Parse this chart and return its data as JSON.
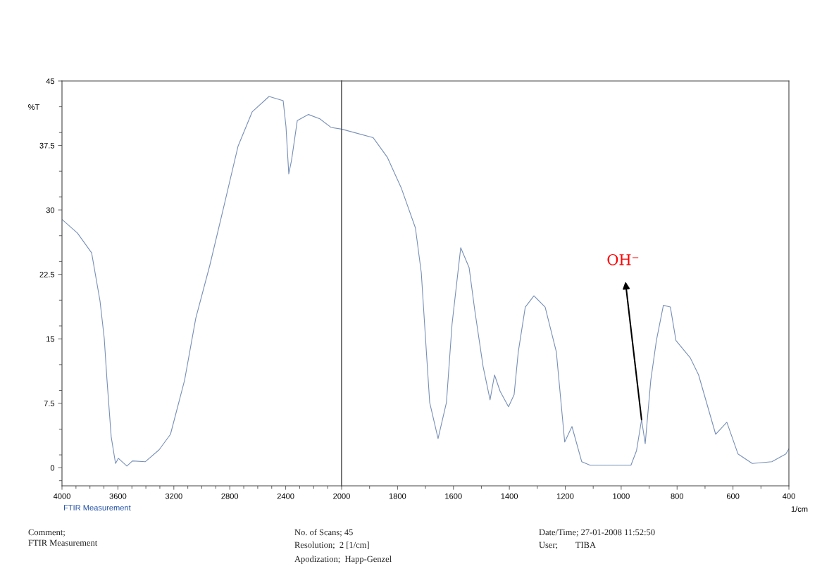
{
  "chart_data": [
    {
      "type": "line",
      "ylabel": "%T",
      "xlim": [
        4000,
        2000
      ],
      "ylim": [
        -2.1,
        45
      ],
      "xticks": [
        4000,
        {
          "value": 3900,
          "label": null
        },
        {
          "value": 3800,
          "label": null
        },
        {
          "value": 3700,
          "label": null
        },
        3600,
        {
          "value": 3500,
          "label": null
        },
        {
          "value": 3400,
          "label": null
        },
        {
          "value": 3300,
          "label": null
        },
        3200,
        {
          "value": 3100,
          "label": null
        },
        {
          "value": 3000,
          "label": null
        },
        {
          "value": 2900,
          "label": null
        },
        2800,
        {
          "value": 2700,
          "label": null
        },
        {
          "value": 2600,
          "label": null
        },
        {
          "value": 2500,
          "label": null
        },
        2400,
        {
          "value": 2300,
          "label": null
        },
        {
          "value": 2200,
          "label": null
        },
        {
          "value": 2100,
          "label": null
        }
      ],
      "yticks": [
        {
          "value": -1.5,
          "label": null
        },
        0,
        {
          "value": 1.5,
          "label": null
        },
        {
          "value": 4.5,
          "label": null
        },
        7.5,
        {
          "value": 9,
          "label": null
        },
        {
          "value": 12,
          "label": null
        },
        15,
        {
          "value": 16.5,
          "label": null
        },
        {
          "value": 19.5,
          "label": null
        },
        22.5,
        {
          "value": 24,
          "label": null
        },
        {
          "value": 27,
          "label": null
        },
        30,
        {
          "value": 31.5,
          "label": null
        },
        {
          "value": 34.5,
          "label": null
        },
        37.5,
        {
          "value": 39,
          "label": null
        },
        {
          "value": 42,
          "label": null
        },
        45
      ],
      "grid": false,
      "marker": "none",
      "line_style": "solid",
      "series": [
        {
          "color": "#7890b8",
          "x": [
            4000,
            3889,
            3788,
            3728,
            3698,
            3678,
            3648,
            3617,
            3597,
            3536,
            3496,
            3405,
            3305,
            3224,
            3123,
            3043,
            2942,
            2841,
            2741,
            2640,
            2519,
            2418,
            2398,
            2378,
            2358,
            2317,
            2237,
            2156,
            2076,
            2000
          ],
          "values": [
            28.9,
            27.3,
            25,
            19.4,
            15.1,
            10.2,
            3.6,
            0.5,
            1.1,
            0.2,
            0.8,
            0.7,
            2.1,
            3.9,
            10.2,
            17.4,
            23.6,
            30.5,
            37.4,
            41.4,
            43.2,
            42.7,
            39.7,
            34.2,
            35.8,
            40.4,
            41.1,
            40.6,
            39.6,
            39.4
          ]
        }
      ],
      "annotations": [
        "FTIR Measurement",
        "Comment;",
        "FTIR Measurement",
        "No. of Scans; 45",
        "Resolution;  2 [1/cm]",
        "Apodization;  Happ-Genzel",
        "Date/Time; 27-01-2008 11:52:50",
        "User;        TIBA"
      ]
    },
    {
      "type": "line",
      "xlabel": "1/cm",
      "tick_labels": "x",
      "xlim": [
        2000,
        400
      ],
      "ylim": [
        -2.1,
        45
      ],
      "xticks": [
        2000,
        {
          "value": 1900,
          "label": null
        },
        1800,
        {
          "value": 1700,
          "label": null
        },
        1600,
        {
          "value": 1500,
          "label": null
        },
        1400,
        {
          "value": 1300,
          "label": null
        },
        1200,
        {
          "value": 1100,
          "label": null
        },
        1000,
        {
          "value": 900,
          "label": null
        },
        800,
        {
          "value": 700,
          "label": null
        },
        600,
        {
          "value": 500,
          "label": null
        },
        400
      ],
      "grid": false,
      "marker": "none",
      "line_style": "solid",
      "series": [
        {
          "color": "#7890b8",
          "x": [
            2000,
            1887,
            1836,
            1786,
            1736,
            1715,
            1700,
            1685,
            1655,
            1625,
            1605,
            1574,
            1544,
            1524,
            1494,
            1469,
            1453,
            1433,
            1403,
            1383,
            1368,
            1343,
            1312,
            1272,
            1232,
            1202,
            1176,
            1141,
            1111,
            1035,
            965,
            945,
            927,
            914,
            894,
            874,
            849,
            824,
            804,
            753,
            723,
            662,
            622,
            582,
            531,
            461,
            411,
            400
          ],
          "values": [
            39.4,
            38.4,
            36.1,
            32.5,
            27.9,
            22.7,
            15.1,
            7.6,
            3.4,
            7.6,
            16.7,
            25.6,
            23.3,
            18.4,
            11.8,
            7.9,
            10.8,
            8.9,
            7.1,
            8.5,
            13.5,
            18.7,
            20.0,
            18.7,
            13.5,
            3.0,
            4.8,
            0.7,
            0.3,
            0.3,
            0.3,
            2.0,
            5.6,
            2.8,
            10.2,
            14.8,
            18.9,
            18.7,
            14.8,
            12.8,
            10.8,
            3.9,
            5.3,
            1.6,
            0.5,
            0.7,
            1.6,
            2.2
          ]
        }
      ],
      "annotations": [
        {
          "text": "OH⁻",
          "x": 927,
          "y": 5.6
        }
      ]
    }
  ]
}
